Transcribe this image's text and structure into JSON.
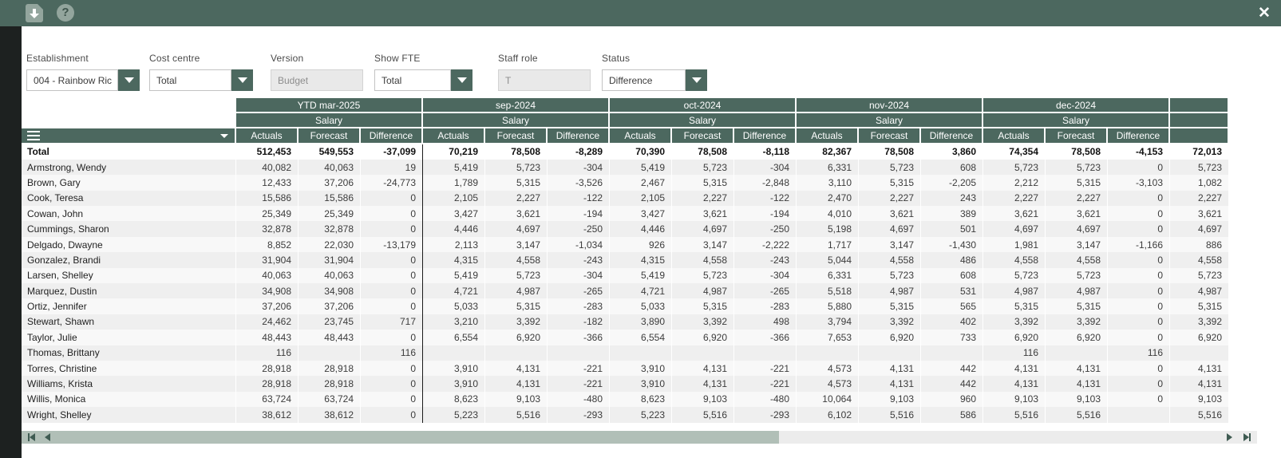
{
  "colors": {
    "accent": "#4c685f",
    "icon_bg": "#93a59d",
    "thumb": "#b1bfb7",
    "row_odd": "#efefef",
    "row_even": "#f8f8f8",
    "dim_strip": "#1d2120"
  },
  "topbar": {
    "close_glyph": "✕",
    "help_glyph": "?"
  },
  "filters": {
    "establishment": {
      "label": "Establishment",
      "value": "004 - Rainbow Ric"
    },
    "cost_centre": {
      "label": "Cost centre",
      "value": "Total"
    },
    "version": {
      "label": "Version",
      "value": "Budget"
    },
    "show_fte": {
      "label": "Show FTE",
      "value": "Total"
    },
    "staff_role": {
      "label": "Staff role",
      "value": "T"
    },
    "status": {
      "label": "Status",
      "value": "Difference"
    }
  },
  "table": {
    "groups": [
      {
        "label": "YTD mar-2025",
        "sub": "Salary",
        "cols": 3
      },
      {
        "label": "sep-2024",
        "sub": "Salary",
        "cols": 3
      },
      {
        "label": "oct-2024",
        "sub": "Salary",
        "cols": 3
      },
      {
        "label": "nov-2024",
        "sub": "Salary",
        "cols": 3
      },
      {
        "label": "dec-2024",
        "sub": "Salary",
        "cols": 3
      },
      {
        "label": "",
        "sub": "",
        "cols": 1
      }
    ],
    "measure_columns": [
      "Actuals",
      "Forecast",
      "Difference"
    ],
    "rows": [
      {
        "name": "Total",
        "total": true,
        "cells": [
          "512,453",
          "549,553",
          "-37,099",
          "70,219",
          "78,508",
          "-8,289",
          "70,390",
          "78,508",
          "-8,118",
          "82,367",
          "78,508",
          "3,860",
          "74,354",
          "78,508",
          "-4,153",
          "72,013"
        ]
      },
      {
        "name": "Armstrong, Wendy",
        "cells": [
          "40,082",
          "40,063",
          "19",
          "5,419",
          "5,723",
          "-304",
          "5,419",
          "5,723",
          "-304",
          "6,331",
          "5,723",
          "608",
          "5,723",
          "5,723",
          "0",
          "5,723"
        ]
      },
      {
        "name": "Brown, Gary",
        "cells": [
          "12,433",
          "37,206",
          "-24,773",
          "1,789",
          "5,315",
          "-3,526",
          "2,467",
          "5,315",
          "-2,848",
          "3,110",
          "5,315",
          "-2,205",
          "2,212",
          "5,315",
          "-3,103",
          "1,082"
        ]
      },
      {
        "name": "Cook, Teresa",
        "cells": [
          "15,586",
          "15,586",
          "0",
          "2,105",
          "2,227",
          "-122",
          "2,105",
          "2,227",
          "-122",
          "2,470",
          "2,227",
          "243",
          "2,227",
          "2,227",
          "0",
          "2,227"
        ]
      },
      {
        "name": "Cowan, John",
        "cells": [
          "25,349",
          "25,349",
          "0",
          "3,427",
          "3,621",
          "-194",
          "3,427",
          "3,621",
          "-194",
          "4,010",
          "3,621",
          "389",
          "3,621",
          "3,621",
          "0",
          "3,621"
        ]
      },
      {
        "name": "Cummings, Sharon",
        "cells": [
          "32,878",
          "32,878",
          "0",
          "4,446",
          "4,697",
          "-250",
          "4,446",
          "4,697",
          "-250",
          "5,198",
          "4,697",
          "501",
          "4,697",
          "4,697",
          "0",
          "4,697"
        ]
      },
      {
        "name": "Delgado, Dwayne",
        "cells": [
          "8,852",
          "22,030",
          "-13,179",
          "2,113",
          "3,147",
          "-1,034",
          "926",
          "3,147",
          "-2,222",
          "1,717",
          "3,147",
          "-1,430",
          "1,981",
          "3,147",
          "-1,166",
          "886"
        ]
      },
      {
        "name": "Gonzalez, Brandi",
        "cells": [
          "31,904",
          "31,904",
          "0",
          "4,315",
          "4,558",
          "-243",
          "4,315",
          "4,558",
          "-243",
          "5,044",
          "4,558",
          "486",
          "4,558",
          "4,558",
          "0",
          "4,558"
        ]
      },
      {
        "name": "Larsen, Shelley",
        "cells": [
          "40,063",
          "40,063",
          "0",
          "5,419",
          "5,723",
          "-304",
          "5,419",
          "5,723",
          "-304",
          "6,331",
          "5,723",
          "608",
          "5,723",
          "5,723",
          "0",
          "5,723"
        ]
      },
      {
        "name": "Marquez, Dustin",
        "cells": [
          "34,908",
          "34,908",
          "0",
          "4,721",
          "4,987",
          "-265",
          "4,721",
          "4,987",
          "-265",
          "5,518",
          "4,987",
          "531",
          "4,987",
          "4,987",
          "0",
          "4,987"
        ]
      },
      {
        "name": "Ortiz, Jennifer",
        "cells": [
          "37,206",
          "37,206",
          "0",
          "5,033",
          "5,315",
          "-283",
          "5,033",
          "5,315",
          "-283",
          "5,880",
          "5,315",
          "565",
          "5,315",
          "5,315",
          "0",
          "5,315"
        ]
      },
      {
        "name": "Stewart, Shawn",
        "cells": [
          "24,462",
          "23,745",
          "717",
          "3,210",
          "3,392",
          "-182",
          "3,890",
          "3,392",
          "498",
          "3,794",
          "3,392",
          "402",
          "3,392",
          "3,392",
          "0",
          "3,392"
        ]
      },
      {
        "name": "Taylor, Julie",
        "cells": [
          "48,443",
          "48,443",
          "0",
          "6,554",
          "6,920",
          "-366",
          "6,554",
          "6,920",
          "-366",
          "7,653",
          "6,920",
          "733",
          "6,920",
          "6,920",
          "0",
          "6,920"
        ]
      },
      {
        "name": "Thomas, Brittany",
        "cells": [
          "116",
          "",
          "116",
          "",
          "",
          "",
          "",
          "",
          "",
          "",
          "",
          "",
          "116",
          "",
          "116",
          ""
        ]
      },
      {
        "name": "Torres, Christine",
        "cells": [
          "28,918",
          "28,918",
          "0",
          "3,910",
          "4,131",
          "-221",
          "3,910",
          "4,131",
          "-221",
          "4,573",
          "4,131",
          "442",
          "4,131",
          "4,131",
          "0",
          "4,131"
        ]
      },
      {
        "name": "Williams, Krista",
        "cells": [
          "28,918",
          "28,918",
          "0",
          "3,910",
          "4,131",
          "-221",
          "3,910",
          "4,131",
          "-221",
          "4,573",
          "4,131",
          "442",
          "4,131",
          "4,131",
          "0",
          "4,131"
        ]
      },
      {
        "name": "Willis, Monica",
        "cells": [
          "63,724",
          "63,724",
          "0",
          "8,623",
          "9,103",
          "-480",
          "8,623",
          "9,103",
          "-480",
          "10,064",
          "9,103",
          "960",
          "9,103",
          "9,103",
          "0",
          "9,103"
        ]
      },
      {
        "name": "Wright, Shelley",
        "cells": [
          "38,612",
          "38,612",
          "0",
          "5,223",
          "5,516",
          "-293",
          "5,223",
          "5,516",
          "-293",
          "6,102",
          "5,516",
          "586",
          "5,516",
          "5,516",
          "",
          "5,516"
        ]
      }
    ]
  }
}
